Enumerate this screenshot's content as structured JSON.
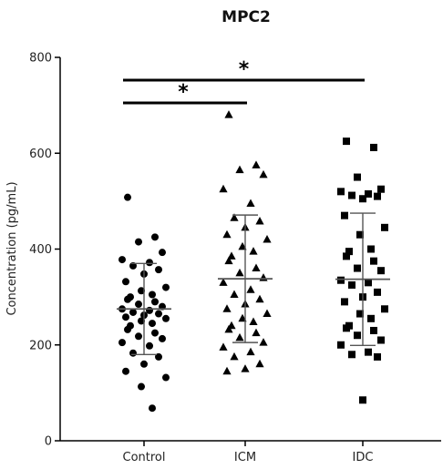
{
  "chart_data": {
    "type": "scatter",
    "title": "MPC2",
    "xlabel": "",
    "ylabel": "Concentration (pg/mL)",
    "ylim": [
      0,
      800
    ],
    "yticks": [
      "0",
      "200",
      "400",
      "600",
      "800"
    ],
    "categories": [
      "Control",
      "ICM",
      "IDC"
    ],
    "grid": false,
    "series": [
      {
        "category": "Control",
        "marker": "circle",
        "mean": 275,
        "sd": 95,
        "values": [
          508,
          425,
          415,
          393,
          378,
          372,
          365,
          357,
          348,
          332,
          320,
          313,
          305,
          300,
          295,
          290,
          285,
          280,
          275,
          272,
          268,
          265,
          262,
          258,
          255,
          250,
          245,
          240,
          232,
          225,
          218,
          213,
          205,
          198,
          183,
          175,
          160,
          145,
          132,
          113,
          68
        ]
      },
      {
        "category": "ICM",
        "marker": "triangle",
        "mean": 338,
        "sd": 133,
        "values": [
          680,
          575,
          565,
          555,
          525,
          495,
          465,
          458,
          445,
          430,
          420,
          405,
          395,
          385,
          375,
          360,
          350,
          340,
          330,
          315,
          305,
          295,
          285,
          275,
          265,
          255,
          248,
          240,
          232,
          225,
          215,
          205,
          195,
          185,
          175,
          160,
          150,
          145
        ]
      },
      {
        "category": "IDC",
        "marker": "square",
        "mean": 337,
        "sd": 138,
        "values": [
          625,
          612,
          550,
          525,
          520,
          515,
          512,
          510,
          505,
          470,
          445,
          430,
          400,
          395,
          385,
          375,
          360,
          355,
          335,
          330,
          325,
          310,
          300,
          290,
          275,
          265,
          255,
          240,
          235,
          230,
          220,
          210,
          200,
          185,
          180,
          175,
          85
        ]
      }
    ],
    "annotations": [
      {
        "from": "Control",
        "to": "IDC",
        "label": "*"
      },
      {
        "from": "Control",
        "to": "ICM",
        "label": "*"
      }
    ]
  }
}
